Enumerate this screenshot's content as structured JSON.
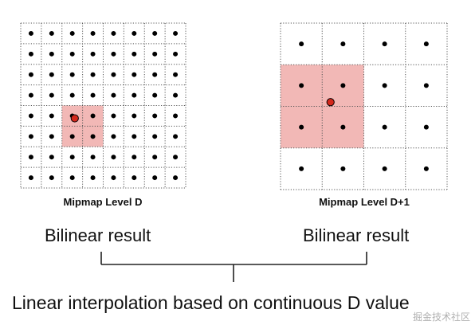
{
  "diagram": {
    "left_panel": {
      "title": "Mipmap Level D",
      "grid_size": 8,
      "highlight": {
        "col": 2,
        "row": 4,
        "span": 2
      },
      "sample_point": {
        "col": 2,
        "row": 4,
        "fx": 0.62,
        "fy": 0.62
      }
    },
    "right_panel": {
      "title": "Mipmap Level D+1",
      "grid_size": 4,
      "highlight": {
        "col": 0,
        "row": 1,
        "span": 2
      },
      "sample_point": {
        "col": 1,
        "row": 2,
        "fx": 0.2,
        "fy": -0.1
      }
    },
    "left_result": "Bilinear result",
    "right_result": "Bilinear result",
    "conclusion": "Linear interpolation based on continuous D value",
    "watermark": "掘金技术社区",
    "colors": {
      "highlight_fill": "#f2b8b6",
      "sample_point": "#d4281c",
      "grid_line": "#555555",
      "dot": "#000000"
    }
  }
}
